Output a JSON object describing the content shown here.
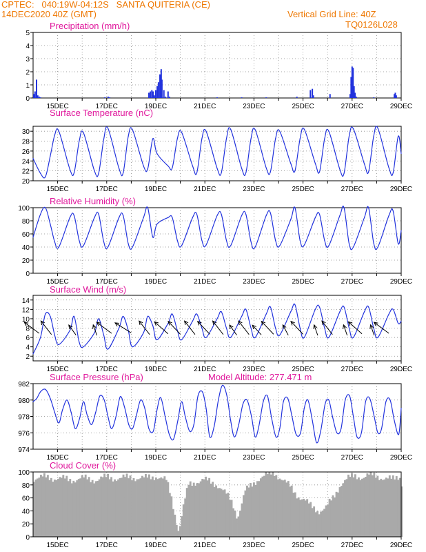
{
  "header": {
    "line1": "CPTEC:   040:19W-04:12S   SANTA QUITERIA (CE)",
    "line2": "14DEC2020 40Z (GMT)",
    "grid_note": "Vertical Grid Line: 40Z",
    "model_code": "TQ0126L028"
  },
  "colors": {
    "header": "#ee7700",
    "title": "#e0189c",
    "line": "#2233dd",
    "bar": "#2233dd",
    "cloud": "#a9a9a9"
  },
  "x_ticks": [
    "15DEC",
    "17DEC",
    "19DEC",
    "21DEC",
    "23DEC",
    "25DEC",
    "27DEC",
    "29DEC"
  ],
  "x_range_days": [
    14.0,
    29.0
  ],
  "chart_data": [
    {
      "id": "precip",
      "type": "bar",
      "title": "Precipitation (mm/h)",
      "ylim": [
        0,
        5
      ],
      "yticks": [
        0,
        1,
        2,
        3,
        4,
        5
      ],
      "grid": true,
      "x": [
        14.03,
        14.08,
        14.14,
        14.19,
        14.25,
        14.3,
        16.92,
        17.06,
        17.12,
        18.72,
        18.78,
        18.84,
        18.89,
        18.94,
        19.0,
        19.06,
        19.11,
        19.17,
        19.22,
        19.25,
        19.33,
        19.39,
        19.5,
        19.56,
        21.5,
        22.5,
        23.5,
        24.75,
        25.3,
        25.38,
        25.42,
        26.1,
        26.92,
        26.96,
        27.0,
        27.04,
        27.08,
        27.12,
        27.17,
        27.88,
        28.72,
        28.76,
        28.8
      ],
      "values": [
        0.3,
        0.5,
        1.4,
        0.2,
        0.1,
        0.05,
        0.05,
        0.1,
        0.05,
        0.4,
        0.5,
        0.6,
        0.5,
        0.2,
        0.6,
        0.9,
        1.2,
        1.8,
        2.2,
        1.4,
        0.6,
        0.1,
        0.5,
        0.1,
        0.05,
        0.05,
        0.05,
        0.1,
        0.6,
        0.7,
        0.2,
        0.3,
        0.3,
        1.6,
        2.4,
        2.3,
        0.9,
        0.4,
        0.1,
        0.05,
        0.3,
        0.4,
        0.2
      ]
    },
    {
      "id": "temp",
      "type": "line",
      "title": "Surface Temperature (nC)",
      "ylim": [
        20,
        31
      ],
      "yticks": [
        20,
        22,
        24,
        26,
        28,
        30
      ],
      "grid": true,
      "x": [
        14.0,
        14.3,
        14.5,
        14.7,
        14.88,
        15.05,
        15.5,
        15.67,
        15.88,
        16.05,
        16.5,
        16.67,
        16.88,
        17.05,
        17.5,
        17.67,
        17.88,
        18.05,
        18.5,
        18.67,
        18.88,
        19.05,
        19.5,
        19.67,
        19.88,
        20.05,
        20.5,
        20.67,
        20.88,
        21.05,
        21.5,
        21.67,
        21.88,
        22.05,
        22.5,
        22.67,
        22.88,
        23.05,
        23.5,
        23.67,
        23.88,
        24.05,
        24.5,
        24.67,
        24.88,
        25.05,
        25.5,
        25.67,
        25.88,
        26.05,
        26.5,
        26.67,
        26.88,
        27.05,
        27.5,
        27.67,
        27.88,
        28.05,
        28.5,
        28.67,
        28.88,
        29.0
      ],
      "values": [
        24.5,
        21.5,
        20.8,
        25.0,
        29.2,
        30.0,
        22.3,
        21.6,
        28.0,
        29.7,
        22.0,
        21.5,
        28.4,
        30.6,
        22.5,
        21.6,
        29.0,
        30.3,
        23.0,
        22.4,
        28.5,
        25.5,
        23.0,
        22.6,
        28.5,
        29.8,
        23.0,
        21.6,
        28.5,
        30.0,
        22.5,
        21.6,
        28.5,
        30.4,
        22.5,
        21.6,
        28.5,
        30.3,
        22.6,
        21.8,
        28.5,
        30.0,
        23.5,
        22.0,
        28.5,
        30.4,
        23.5,
        21.8,
        28.5,
        30.0,
        22.3,
        21.5,
        29.0,
        30.5,
        23.4,
        21.8,
        29.0,
        30.6,
        22.6,
        21.6,
        29.0,
        25.5
      ]
    },
    {
      "id": "rh",
      "type": "line",
      "title": "Relative Humidity (%)",
      "ylim": [
        0,
        100
      ],
      "yticks": [
        0,
        20,
        40,
        60,
        80,
        100
      ],
      "grid": true,
      "x": [
        14.0,
        14.3,
        14.5,
        14.7,
        14.88,
        15.05,
        15.5,
        15.67,
        15.88,
        16.05,
        16.5,
        16.67,
        16.88,
        17.05,
        17.5,
        17.67,
        17.88,
        18.05,
        18.5,
        18.67,
        18.88,
        19.05,
        19.5,
        19.67,
        19.88,
        20.05,
        20.5,
        20.67,
        20.88,
        21.05,
        21.5,
        21.67,
        21.88,
        22.05,
        22.5,
        22.67,
        22.88,
        23.05,
        23.5,
        23.67,
        23.88,
        24.05,
        24.5,
        24.67,
        24.88,
        25.05,
        25.5,
        25.67,
        25.88,
        26.05,
        26.5,
        26.67,
        26.88,
        27.05,
        27.5,
        27.67,
        27.88,
        28.05,
        28.5,
        28.67,
        28.88,
        29.0
      ],
      "values": [
        55,
        90,
        100,
        75,
        48,
        40,
        85,
        88,
        50,
        42,
        85,
        90,
        48,
        40,
        85,
        88,
        45,
        40,
        85,
        100,
        55,
        75,
        85,
        85,
        50,
        42,
        85,
        90,
        50,
        43,
        88,
        90,
        50,
        42,
        88,
        90,
        48,
        40,
        88,
        92,
        50,
        42,
        82,
        100,
        50,
        43,
        85,
        90,
        50,
        42,
        88,
        100,
        45,
        40,
        85,
        100,
        46,
        40,
        88,
        95,
        45,
        65
      ]
    },
    {
      "id": "wind",
      "type": "line",
      "title": "Surface Wind (m/s)",
      "ylim": [
        1,
        15
      ],
      "yticks": [
        2,
        4,
        6,
        8,
        10,
        12,
        14
      ],
      "grid": true,
      "x": [
        14.0,
        14.3,
        14.5,
        14.7,
        14.88,
        15.05,
        15.5,
        15.67,
        15.88,
        16.05,
        16.5,
        16.67,
        16.88,
        17.05,
        17.5,
        17.67,
        17.88,
        18.05,
        18.5,
        18.67,
        18.88,
        19.05,
        19.5,
        19.67,
        19.88,
        20.05,
        20.5,
        20.67,
        20.88,
        21.05,
        21.5,
        21.67,
        21.88,
        22.05,
        22.5,
        22.67,
        22.88,
        23.05,
        23.5,
        23.67,
        23.88,
        24.05,
        24.5,
        24.67,
        24.88,
        25.05,
        25.5,
        25.67,
        25.88,
        26.05,
        26.5,
        26.67,
        26.88,
        27.05,
        27.5,
        27.67,
        27.88,
        28.05,
        28.5,
        28.67,
        28.88,
        29.0
      ],
      "values": [
        2.5,
        6.0,
        11.0,
        10.5,
        6.5,
        4.5,
        7.5,
        10.5,
        5.0,
        4.0,
        7.0,
        10.0,
        6.5,
        3.5,
        8.0,
        10.5,
        7.5,
        4.0,
        7.0,
        10.5,
        8.5,
        5.5,
        9.0,
        11.0,
        7.5,
        5.5,
        9.5,
        11.0,
        8.0,
        6.0,
        10.0,
        11.5,
        8.0,
        6.0,
        10.5,
        12.0,
        8.0,
        6.0,
        11.0,
        12.5,
        8.0,
        6.5,
        11.5,
        13.0,
        8.0,
        6.0,
        12.0,
        12.5,
        8.0,
        6.0,
        11.5,
        12.5,
        8.0,
        6.0,
        11.5,
        12.5,
        8.0,
        6.0,
        11.0,
        12.0,
        9.0,
        9.5
      ],
      "arrows": [
        {
          "x": 14.25,
          "dir": 45
        },
        {
          "x": 14.75,
          "dir": 60
        },
        {
          "x": 15.75,
          "dir": 70
        },
        {
          "x": 16.6,
          "dir": 80
        },
        {
          "x": 17.2,
          "dir": 45
        },
        {
          "x": 18.0,
          "dir": 40
        },
        {
          "x": 18.75,
          "dir": 60
        },
        {
          "x": 19.5,
          "dir": 50
        },
        {
          "x": 20.0,
          "dir": 55
        },
        {
          "x": 20.6,
          "dir": 60
        },
        {
          "x": 21.2,
          "dir": 55
        },
        {
          "x": 21.75,
          "dir": 60
        },
        {
          "x": 22.3,
          "dir": 70
        },
        {
          "x": 22.8,
          "dir": 60
        },
        {
          "x": 23.3,
          "dir": 65
        },
        {
          "x": 23.8,
          "dir": 55
        },
        {
          "x": 24.4,
          "dir": 75
        },
        {
          "x": 25.0,
          "dir": 55
        },
        {
          "x": 25.6,
          "dir": 80
        },
        {
          "x": 26.2,
          "dir": 60
        },
        {
          "x": 26.8,
          "dir": 80
        },
        {
          "x": 27.4,
          "dir": 50
        },
        {
          "x": 27.9,
          "dir": 80
        },
        {
          "x": 28.5,
          "dir": 45
        }
      ]
    },
    {
      "id": "pressure",
      "type": "line",
      "title": "Surface Pressure (hPa)",
      "subtitle": "Model Altitude: 277.471 m",
      "ylim": [
        974,
        982
      ],
      "yticks": [
        974,
        976,
        978,
        980,
        982
      ],
      "grid": true,
      "x": [
        14.0,
        14.15,
        14.3,
        14.5,
        14.7,
        14.88,
        15.05,
        15.2,
        15.38,
        15.55,
        15.72,
        15.9,
        16.05,
        16.2,
        16.38,
        16.55,
        16.72,
        16.9,
        17.05,
        17.2,
        17.38,
        17.55,
        17.72,
        17.9,
        18.05,
        18.2,
        18.38,
        18.55,
        18.72,
        18.9,
        19.05,
        19.2,
        19.38,
        19.55,
        19.72,
        19.9,
        20.05,
        20.2,
        20.38,
        20.55,
        20.72,
        20.9,
        21.05,
        21.2,
        21.38,
        21.55,
        21.72,
        21.9,
        22.05,
        22.2,
        22.38,
        22.55,
        22.72,
        22.9,
        23.05,
        23.2,
        23.38,
        23.55,
        23.72,
        23.9,
        24.05,
        24.2,
        24.38,
        24.55,
        24.72,
        24.9,
        25.05,
        25.2,
        25.38,
        25.55,
        25.72,
        25.9,
        26.05,
        26.2,
        26.38,
        26.55,
        26.72,
        26.9,
        27.05,
        27.2,
        27.38,
        27.55,
        27.72,
        27.9,
        28.05,
        28.2,
        28.38,
        28.55,
        28.72,
        28.9,
        29.0
      ],
      "values": [
        979.8,
        980.2,
        981.0,
        981.3,
        980.2,
        978.5,
        977.2,
        978.8,
        980.0,
        978.5,
        976.5,
        977.8,
        979.8,
        978.2,
        977.0,
        978.5,
        980.5,
        980.0,
        978.0,
        976.5,
        978.0,
        980.4,
        979.2,
        977.0,
        976.5,
        978.0,
        980.0,
        979.0,
        976.5,
        976.2,
        978.8,
        980.3,
        978.0,
        975.8,
        975.2,
        977.5,
        979.8,
        978.0,
        976.2,
        977.0,
        980.5,
        981.0,
        979.0,
        975.5,
        976.8,
        980.0,
        981.8,
        980.5,
        977.5,
        975.5,
        977.0,
        979.5,
        980.0,
        978.0,
        975.5,
        976.8,
        979.8,
        980.5,
        977.8,
        975.5,
        976.5,
        979.8,
        980.2,
        978.0,
        975.8,
        976.0,
        979.0,
        980.0,
        977.5,
        974.8,
        976.2,
        979.5,
        980.0,
        978.0,
        976.0,
        976.5,
        980.0,
        980.5,
        978.0,
        975.5,
        976.0,
        979.8,
        980.2,
        978.0,
        976.0,
        976.5,
        979.8,
        980.0,
        977.5,
        975.8,
        979.0
      ]
    },
    {
      "id": "cloud",
      "type": "area",
      "title": "Cloud Cover (%)",
      "ylim": [
        0,
        100
      ],
      "yticks": [
        0,
        20,
        40,
        60,
        80,
        100
      ],
      "grid": true,
      "x": [
        14.0,
        14.5,
        15.0,
        15.5,
        16.0,
        16.5,
        17.0,
        17.5,
        18.0,
        18.5,
        19.0,
        19.4,
        19.6,
        19.9,
        20.1,
        20.3,
        20.6,
        20.9,
        21.2,
        21.5,
        21.7,
        21.9,
        22.1,
        22.3,
        22.6,
        22.9,
        23.2,
        23.5,
        23.8,
        24.1,
        24.4,
        24.7,
        25.0,
        25.3,
        25.6,
        25.9,
        26.2,
        26.5,
        26.8,
        27.1,
        27.4,
        27.7,
        28.0,
        28.3,
        28.6,
        28.9,
        29.0
      ],
      "values": [
        90,
        92,
        90,
        88,
        90,
        88,
        92,
        90,
        92,
        90,
        94,
        86,
        60,
        8,
        48,
        80,
        85,
        88,
        84,
        80,
        72,
        62,
        50,
        30,
        70,
        80,
        92,
        95,
        98,
        90,
        78,
        65,
        58,
        46,
        40,
        45,
        60,
        82,
        90,
        94,
        92,
        95,
        94,
        90,
        88,
        94,
        80
      ]
    }
  ]
}
